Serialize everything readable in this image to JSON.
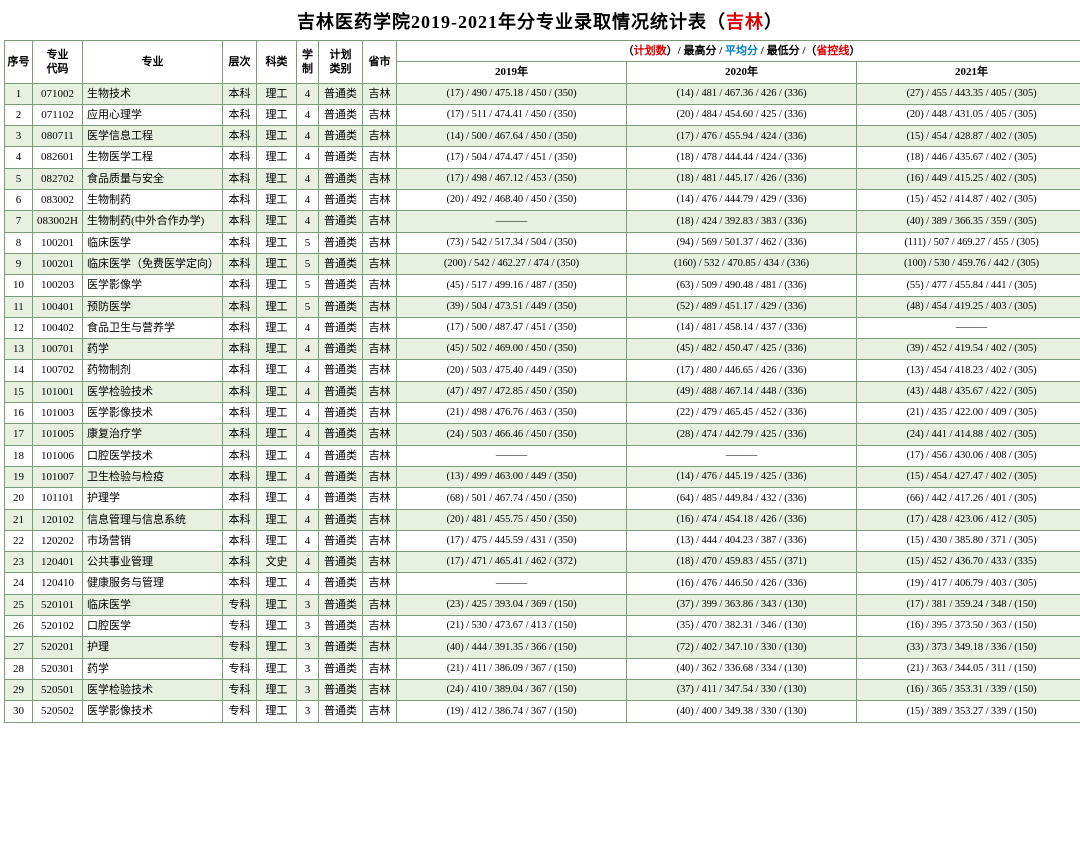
{
  "title_main": "吉林医药学院2019-2021年分专业录取情况统计表（",
  "title_suffix": "吉林",
  "title_end": "）",
  "legend": {
    "open": "（",
    "plan": "计划数",
    "sep1": "）/ ",
    "max": "最高分",
    "sep2": " / ",
    "avg": "平均分",
    "sep3": " / ",
    "min": "最低分",
    "sep4": " /（",
    "ctrl": "省控线",
    "close": "）"
  },
  "headers": {
    "seq": "序号",
    "code": "专业\n代码",
    "major": "专业",
    "level": "层次",
    "subject": "科类",
    "duration": "学\n制",
    "plantype": "计划\n类别",
    "prov": "省市",
    "y2019": "2019年",
    "y2020": "2020年",
    "y2021": "2021年"
  },
  "rows": [
    {
      "seq": "1",
      "code": "071002",
      "major": "生物技术",
      "level": "本科",
      "subject": "理工",
      "dur": "4",
      "plantype": "普通类",
      "prov": "吉林",
      "y19": "(17) / 490 / 475.18 / 450 / (350)",
      "y20": "(14) / 481 / 467.36 / 426 / (336)",
      "y21": "(27) / 455 / 443.35 / 405 / (305)"
    },
    {
      "seq": "2",
      "code": "071102",
      "major": "应用心理学",
      "level": "本科",
      "subject": "理工",
      "dur": "4",
      "plantype": "普通类",
      "prov": "吉林",
      "y19": "(17) / 511 / 474.41 / 450 / (350)",
      "y20": "(20) / 484 / 454.60 / 425 / (336)",
      "y21": "(20) / 448 / 431.05 / 405 / (305)"
    },
    {
      "seq": "3",
      "code": "080711",
      "major": "医学信息工程",
      "level": "本科",
      "subject": "理工",
      "dur": "4",
      "plantype": "普通类",
      "prov": "吉林",
      "y19": "(14) / 500 / 467.64 / 450 / (350)",
      "y20": "(17) / 476 / 455.94 / 424 / (336)",
      "y21": "(15) / 454 / 428.87 / 402 / (305)"
    },
    {
      "seq": "4",
      "code": "082601",
      "major": "生物医学工程",
      "level": "本科",
      "subject": "理工",
      "dur": "4",
      "plantype": "普通类",
      "prov": "吉林",
      "y19": "(17) / 504 / 474.47 / 451 / (350)",
      "y20": "(18) / 478 / 444.44 / 424 / (336)",
      "y21": "(18) / 446 / 435.67 / 402 / (305)"
    },
    {
      "seq": "5",
      "code": "082702",
      "major": "食品质量与安全",
      "level": "本科",
      "subject": "理工",
      "dur": "4",
      "plantype": "普通类",
      "prov": "吉林",
      "y19": "(17) / 498 / 467.12 / 453 / (350)",
      "y20": "(18) / 481 / 445.17 / 426 / (336)",
      "y21": "(16) / 449 / 415.25 / 402 / (305)"
    },
    {
      "seq": "6",
      "code": "083002",
      "major": "生物制药",
      "level": "本科",
      "subject": "理工",
      "dur": "4",
      "plantype": "普通类",
      "prov": "吉林",
      "y19": "(20) / 492 / 468.40 / 450 / (350)",
      "y20": "(14) / 476 / 444.79 / 429 / (336)",
      "y21": "(15) / 452 / 414.87 / 402 / (305)"
    },
    {
      "seq": "7",
      "code": "083002H",
      "major": "生物制药(中外合作办学)",
      "level": "本科",
      "subject": "理工",
      "dur": "4",
      "plantype": "普通类",
      "prov": "吉林",
      "y19": "———",
      "y20": "(18) / 424 / 392.83 / 383 / (336)",
      "y21": "(40) / 389 / 366.35 / 359 / (305)"
    },
    {
      "seq": "8",
      "code": "100201",
      "major": "临床医学",
      "level": "本科",
      "subject": "理工",
      "dur": "5",
      "plantype": "普通类",
      "prov": "吉林",
      "y19": "(73) / 542 / 517.34 / 504 / (350)",
      "y20": "(94) / 569 / 501.37 / 462 / (336)",
      "y21": "(111) / 507 / 469.27 / 455 / (305)"
    },
    {
      "seq": "9",
      "code": "100201",
      "major": "临床医学（免费医学定向）",
      "level": "本科",
      "subject": "理工",
      "dur": "5",
      "plantype": "普通类",
      "prov": "吉林",
      "y19": "(200) / 542 / 462.27 / 474 / (350)",
      "y20": "(160) / 532 / 470.85 / 434 / (336)",
      "y21": "(100) / 530 / 459.76 / 442 / (305)"
    },
    {
      "seq": "10",
      "code": "100203",
      "major": "医学影像学",
      "level": "本科",
      "subject": "理工",
      "dur": "5",
      "plantype": "普通类",
      "prov": "吉林",
      "y19": "(45) / 517 / 499.16 / 487 / (350)",
      "y20": "(63) / 509 / 490.48 / 481 / (336)",
      "y21": "(55) / 477 / 455.84 / 441 / (305)"
    },
    {
      "seq": "11",
      "code": "100401",
      "major": "预防医学",
      "level": "本科",
      "subject": "理工",
      "dur": "5",
      "plantype": "普通类",
      "prov": "吉林",
      "y19": "(39) / 504 / 473.51 / 449 / (350)",
      "y20": "(52) / 489 / 451.17 / 429 / (336)",
      "y21": "(48) / 454 / 419.25 / 403 / (305)"
    },
    {
      "seq": "12",
      "code": "100402",
      "major": "食品卫生与营养学",
      "level": "本科",
      "subject": "理工",
      "dur": "4",
      "plantype": "普通类",
      "prov": "吉林",
      "y19": "(17) / 500 / 487.47 / 451 / (350)",
      "y20": "(14) / 481 / 458.14 / 437 / (336)",
      "y21": "———"
    },
    {
      "seq": "13",
      "code": "100701",
      "major": "药学",
      "level": "本科",
      "subject": "理工",
      "dur": "4",
      "plantype": "普通类",
      "prov": "吉林",
      "y19": "(45) / 502 / 469.00 / 450 / (350)",
      "y20": "(45) / 482 / 450.47 / 425 / (336)",
      "y21": "(39) / 452 / 419.54 / 402 / (305)"
    },
    {
      "seq": "14",
      "code": "100702",
      "major": "药物制剂",
      "level": "本科",
      "subject": "理工",
      "dur": "4",
      "plantype": "普通类",
      "prov": "吉林",
      "y19": "(20) / 503 / 475.40 / 449 / (350)",
      "y20": "(17) / 480 / 446.65 / 426 / (336)",
      "y21": "(13) / 454 / 418.23 / 402 / (305)"
    },
    {
      "seq": "15",
      "code": "101001",
      "major": "医学检验技术",
      "level": "本科",
      "subject": "理工",
      "dur": "4",
      "plantype": "普通类",
      "prov": "吉林",
      "y19": "(47) / 497 / 472.85 / 450 / (350)",
      "y20": "(49) / 488 / 467.14 / 448 / (336)",
      "y21": "(43) / 448 / 435.67 / 422 / (305)"
    },
    {
      "seq": "16",
      "code": "101003",
      "major": "医学影像技术",
      "level": "本科",
      "subject": "理工",
      "dur": "4",
      "plantype": "普通类",
      "prov": "吉林",
      "y19": "(21) / 498 / 476.76 / 463 / (350)",
      "y20": "(22) / 479 / 465.45 / 452 / (336)",
      "y21": "(21) / 435 / 422.00 / 409 / (305)"
    },
    {
      "seq": "17",
      "code": "101005",
      "major": "康复治疗学",
      "level": "本科",
      "subject": "理工",
      "dur": "4",
      "plantype": "普通类",
      "prov": "吉林",
      "y19": "(24) / 503 / 466.46 / 450 / (350)",
      "y20": "(28) / 474 / 442.79 / 425 / (336)",
      "y21": "(24) / 441 / 414.88 / 402 / (305)"
    },
    {
      "seq": "18",
      "code": "101006",
      "major": "口腔医学技术",
      "level": "本科",
      "subject": "理工",
      "dur": "4",
      "plantype": "普通类",
      "prov": "吉林",
      "y19": "———",
      "y20": "———",
      "y21": "(17) / 456 / 430.06 / 408 / (305)"
    },
    {
      "seq": "19",
      "code": "101007",
      "major": "卫生检验与检疫",
      "level": "本科",
      "subject": "理工",
      "dur": "4",
      "plantype": "普通类",
      "prov": "吉林",
      "y19": "(13) / 499 / 463.00 / 449 / (350)",
      "y20": "(14) / 476 / 445.19 / 425 / (336)",
      "y21": "(15) / 454 / 427.47 / 402 / (305)"
    },
    {
      "seq": "20",
      "code": "101101",
      "major": "护理学",
      "level": "本科",
      "subject": "理工",
      "dur": "4",
      "plantype": "普通类",
      "prov": "吉林",
      "y19": "(68) / 501 / 467.74 / 450 / (350)",
      "y20": "(64) / 485 / 449.84 / 432 / (336)",
      "y21": "(66) / 442 / 417.26 / 401 / (305)"
    },
    {
      "seq": "21",
      "code": "120102",
      "major": "信息管理与信息系统",
      "level": "本科",
      "subject": "理工",
      "dur": "4",
      "plantype": "普通类",
      "prov": "吉林",
      "y19": "(20) / 481 / 455.75 / 450 / (350)",
      "y20": "(16) / 474 / 454.18 / 426 / (336)",
      "y21": "(17) / 428 / 423.06 / 412 / (305)"
    },
    {
      "seq": "22",
      "code": "120202",
      "major": "市场营销",
      "level": "本科",
      "subject": "理工",
      "dur": "4",
      "plantype": "普通类",
      "prov": "吉林",
      "y19": "(17) / 475 / 445.59 / 431 / (350)",
      "y20": "(13) / 444 / 404.23 / 387 / (336)",
      "y21": "(15) / 430 / 385.80 / 371 / (305)"
    },
    {
      "seq": "23",
      "code": "120401",
      "major": "公共事业管理",
      "level": "本科",
      "subject": "文史",
      "dur": "4",
      "plantype": "普通类",
      "prov": "吉林",
      "y19": "(17) / 471 / 465.41 / 462 / (372)",
      "y20": "(18) / 470 / 459.83 / 455 / (371)",
      "y21": "(15) / 452 / 436.70 / 433 / (335)"
    },
    {
      "seq": "24",
      "code": "120410",
      "major": "健康服务与管理",
      "level": "本科",
      "subject": "理工",
      "dur": "4",
      "plantype": "普通类",
      "prov": "吉林",
      "y19": "———",
      "y20": "(16) / 476 / 446.50 / 426 / (336)",
      "y21": "(19) / 417 / 406.79 / 403 / (305)"
    },
    {
      "seq": "25",
      "code": "520101",
      "major": "临床医学",
      "level": "专科",
      "subject": "理工",
      "dur": "3",
      "plantype": "普通类",
      "prov": "吉林",
      "y19": "(23) / 425 / 393.04 / 369 / (150)",
      "y20": "(37) / 399 / 363.86 / 343 / (130)",
      "y21": "(17) / 381 / 359.24 / 348 / (150)"
    },
    {
      "seq": "26",
      "code": "520102",
      "major": "口腔医学",
      "level": "专科",
      "subject": "理工",
      "dur": "3",
      "plantype": "普通类",
      "prov": "吉林",
      "y19": "(21) / 530 / 473.67 / 413 / (150)",
      "y20": "(35) / 470 / 382.31 / 346 / (130)",
      "y21": "(16) / 395 / 373.50 / 363 / (150)"
    },
    {
      "seq": "27",
      "code": "520201",
      "major": "护理",
      "level": "专科",
      "subject": "理工",
      "dur": "3",
      "plantype": "普通类",
      "prov": "吉林",
      "y19": "(40) / 444 / 391.35 / 366 / (150)",
      "y20": "(72) / 402 / 347.10 / 330 / (130)",
      "y21": "(33) / 373 / 349.18 / 336 / (150)"
    },
    {
      "seq": "28",
      "code": "520301",
      "major": "药学",
      "level": "专科",
      "subject": "理工",
      "dur": "3",
      "plantype": "普通类",
      "prov": "吉林",
      "y19": "(21) / 411 / 386.09 / 367 / (150)",
      "y20": "(40) / 362 / 336.68 / 334 / (130)",
      "y21": "(21) / 363 / 344.05 / 311 / (150)"
    },
    {
      "seq": "29",
      "code": "520501",
      "major": "医学检验技术",
      "level": "专科",
      "subject": "理工",
      "dur": "3",
      "plantype": "普通类",
      "prov": "吉林",
      "y19": "(24) / 410 / 389.04 / 367 / (150)",
      "y20": "(37) / 411 / 347.54 / 330 / (130)",
      "y21": "(16) / 365 / 353.31 / 339 / (150)"
    },
    {
      "seq": "30",
      "code": "520502",
      "major": "医学影像技术",
      "level": "专科",
      "subject": "理工",
      "dur": "3",
      "plantype": "普通类",
      "prov": "吉林",
      "y19": "(19) / 412 / 386.74 / 367 / (150)",
      "y20": "(40) / 400 / 349.38 / 330 / (130)",
      "y21": "(15) / 389 / 353.27 / 339 / (150)"
    }
  ]
}
